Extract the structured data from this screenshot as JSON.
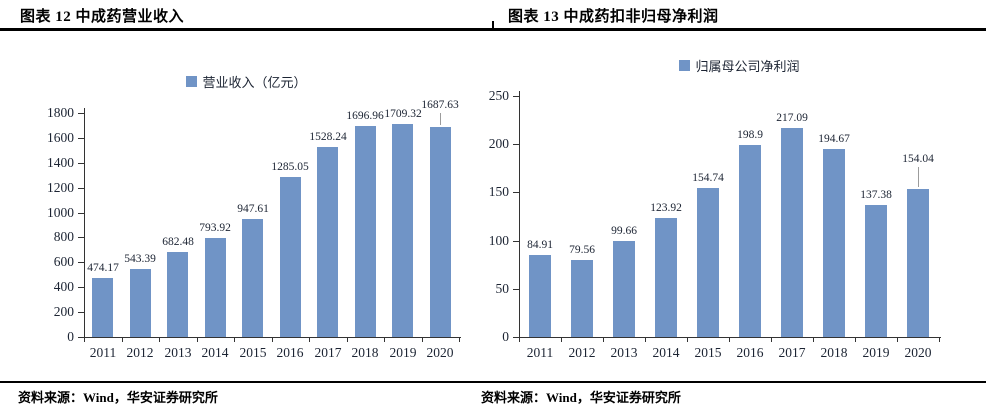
{
  "page": {
    "source_left": "资料来源：Wind，华安证券研究所",
    "source_right": "资料来源：Wind，华安证券研究所"
  },
  "colors": {
    "bar": "#7094C6",
    "leader": "#9c9c9c",
    "axis": "#333333",
    "text": "#1c2433"
  },
  "chart_data": [
    {
      "type": "bar",
      "title": "图表 12 中成药营业收入",
      "series_name": "营业收入（亿元）",
      "legend_position": "top",
      "grid": false,
      "categories": [
        "2011",
        "2012",
        "2013",
        "2014",
        "2015",
        "2016",
        "2017",
        "2018",
        "2019",
        "2020"
      ],
      "values": [
        474.17,
        543.39,
        682.48,
        793.92,
        947.61,
        1285.05,
        1528.24,
        1696.96,
        1709.32,
        1687.63
      ],
      "value_labels": [
        "474.17",
        "543.39",
        "682.48",
        "793.92",
        "947.61",
        "1285.05",
        "1528.24",
        "1696.96",
        "1709.32",
        "1687.63"
      ],
      "ylim": [
        0,
        1800
      ],
      "ytick_step": 200,
      "label_callouts": [
        9
      ]
    },
    {
      "type": "bar",
      "title": "图表 13 中成药扣非归母净利润",
      "series_name": "归属母公司净利润",
      "legend_position": "top",
      "grid": false,
      "categories": [
        "2011",
        "2012",
        "2013",
        "2014",
        "2015",
        "2016",
        "2017",
        "2018",
        "2019",
        "2020"
      ],
      "values": [
        84.91,
        79.56,
        99.66,
        123.92,
        154.74,
        198.9,
        217.09,
        194.67,
        137.38,
        154.04
      ],
      "value_labels": [
        "84.91",
        "79.56",
        "99.66",
        "123.92",
        "154.74",
        "198.9",
        "217.09",
        "194.67",
        "137.38",
        "154.04"
      ],
      "ylim": [
        0,
        250
      ],
      "ytick_step": 50,
      "label_callouts": [
        9
      ]
    }
  ]
}
